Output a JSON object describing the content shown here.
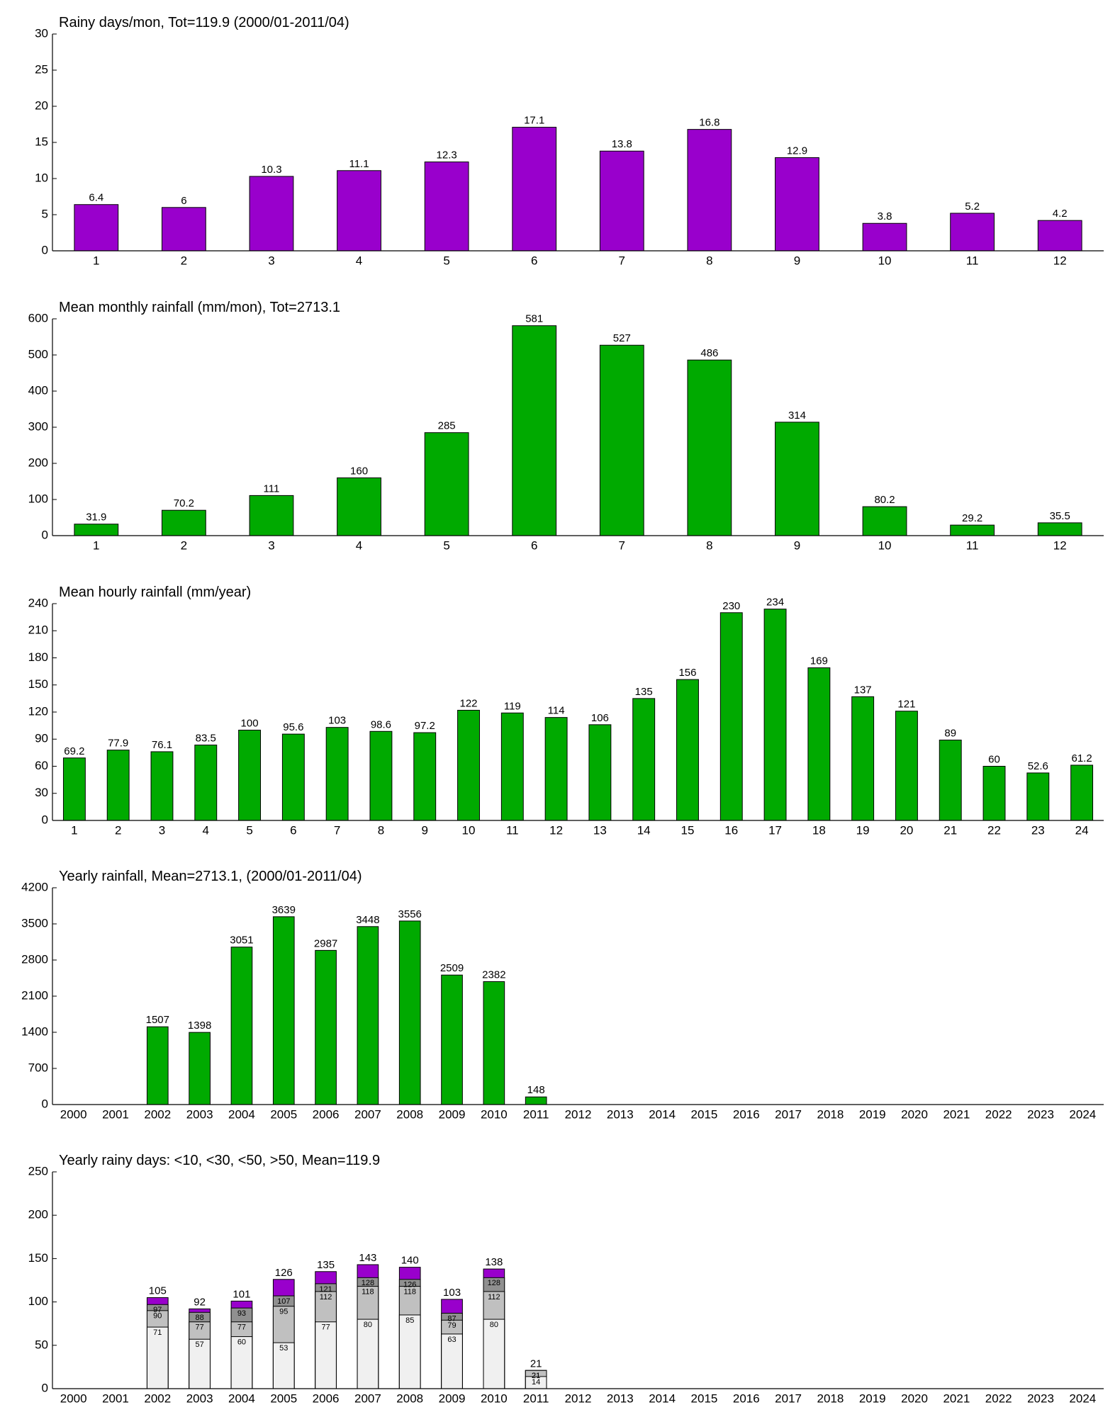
{
  "chart_data": [
    {
      "type": "bar",
      "title": "Rainy days/mon, Tot=119.9 (2000/01-2011/04)",
      "categories": [
        "1",
        "2",
        "3",
        "4",
        "5",
        "6",
        "7",
        "8",
        "9",
        "10",
        "11",
        "12"
      ],
      "values": [
        6.4,
        6,
        10.3,
        11.1,
        12.3,
        17.1,
        13.8,
        16.8,
        12.9,
        3.8,
        5.2,
        4.2
      ],
      "color": "#9900cc",
      "ylim": [
        0,
        30
      ],
      "yticks": [
        0,
        5,
        10,
        15,
        20,
        25,
        30
      ]
    },
    {
      "type": "bar",
      "title": "Mean monthly rainfall (mm/mon), Tot=2713.1",
      "categories": [
        "1",
        "2",
        "3",
        "4",
        "5",
        "6",
        "7",
        "8",
        "9",
        "10",
        "11",
        "12"
      ],
      "values": [
        31.9,
        70.2,
        111,
        160,
        285,
        581,
        527,
        486,
        314,
        80.2,
        29.2,
        35.5
      ],
      "color": "#00aa00",
      "ylim": [
        0,
        600
      ],
      "yticks": [
        0,
        100,
        200,
        300,
        400,
        500,
        600
      ]
    },
    {
      "type": "bar",
      "title": "Mean hourly rainfall (mm/year)",
      "categories": [
        "1",
        "2",
        "3",
        "4",
        "5",
        "6",
        "7",
        "8",
        "9",
        "10",
        "11",
        "12",
        "13",
        "14",
        "15",
        "16",
        "17",
        "18",
        "19",
        "20",
        "21",
        "22",
        "23",
        "24"
      ],
      "values": [
        69.2,
        77.9,
        76.1,
        83.5,
        100,
        95.6,
        103,
        98.6,
        97.2,
        122,
        119,
        114,
        106,
        135,
        156,
        230,
        234,
        169,
        137,
        121,
        89,
        60,
        52.6,
        61.2
      ],
      "color": "#00aa00",
      "ylim": [
        0,
        240
      ],
      "yticks": [
        0,
        30,
        60,
        90,
        120,
        150,
        180,
        210,
        240
      ]
    },
    {
      "type": "bar",
      "title": "Yearly rainfall, Mean=2713.1, (2000/01-2011/04)",
      "categories": [
        "2000",
        "2001",
        "2002",
        "2003",
        "2004",
        "2005",
        "2006",
        "2007",
        "2008",
        "2009",
        "2010",
        "2011",
        "2012",
        "2013",
        "2014",
        "2015",
        "2016",
        "2017",
        "2018",
        "2019",
        "2020",
        "2021",
        "2022",
        "2023",
        "2024"
      ],
      "values": [
        null,
        null,
        1507,
        1398,
        3051,
        3639,
        2987,
        3448,
        3556,
        2509,
        2382,
        148,
        null,
        null,
        null,
        null,
        null,
        null,
        null,
        null,
        null,
        null,
        null,
        null,
        null
      ],
      "color": "#00aa00",
      "ylim": [
        0,
        4200
      ],
      "yticks": [
        0,
        700,
        1400,
        2100,
        2800,
        3500,
        4200
      ]
    },
    {
      "type": "overlaid_bar",
      "title": "Yearly rainy days: <10, <30, <50, >50, Mean=119.9",
      "categories": [
        "2000",
        "2001",
        "2002",
        "2003",
        "2004",
        "2005",
        "2006",
        "2007",
        "2008",
        "2009",
        "2010",
        "2011",
        "2012",
        "2013",
        "2014",
        "2015",
        "2016",
        "2017",
        "2018",
        "2019",
        "2020",
        "2021",
        "2022",
        "2023",
        "2024"
      ],
      "series": [
        {
          "color": "#f0f0f0",
          "values": [
            null,
            null,
            71,
            57,
            60,
            53,
            77,
            80,
            85,
            63,
            80,
            14,
            null,
            null,
            null,
            null,
            null,
            null,
            null,
            null,
            null,
            null,
            null,
            null,
            null
          ]
        },
        {
          "color": "#c0c0c0",
          "values": [
            null,
            null,
            90,
            77,
            77,
            95,
            112,
            118,
            118,
            79,
            112,
            21,
            null,
            null,
            null,
            null,
            null,
            null,
            null,
            null,
            null,
            null,
            null,
            null,
            null
          ]
        },
        {
          "color": "#909090",
          "values": [
            null,
            null,
            97,
            88,
            93,
            107,
            121,
            128,
            126,
            87,
            128,
            21,
            null,
            null,
            null,
            null,
            null,
            null,
            null,
            null,
            null,
            null,
            null,
            null,
            null
          ]
        },
        {
          "color": "#9900cc",
          "values": [
            null,
            null,
            105,
            92,
            101,
            126,
            135,
            143,
            140,
            103,
            138,
            21,
            null,
            null,
            null,
            null,
            null,
            null,
            null,
            null,
            null,
            null,
            null,
            null,
            null
          ]
        }
      ],
      "ylim": [
        0,
        250
      ],
      "yticks": [
        0,
        50,
        100,
        150,
        200,
        250
      ]
    }
  ]
}
